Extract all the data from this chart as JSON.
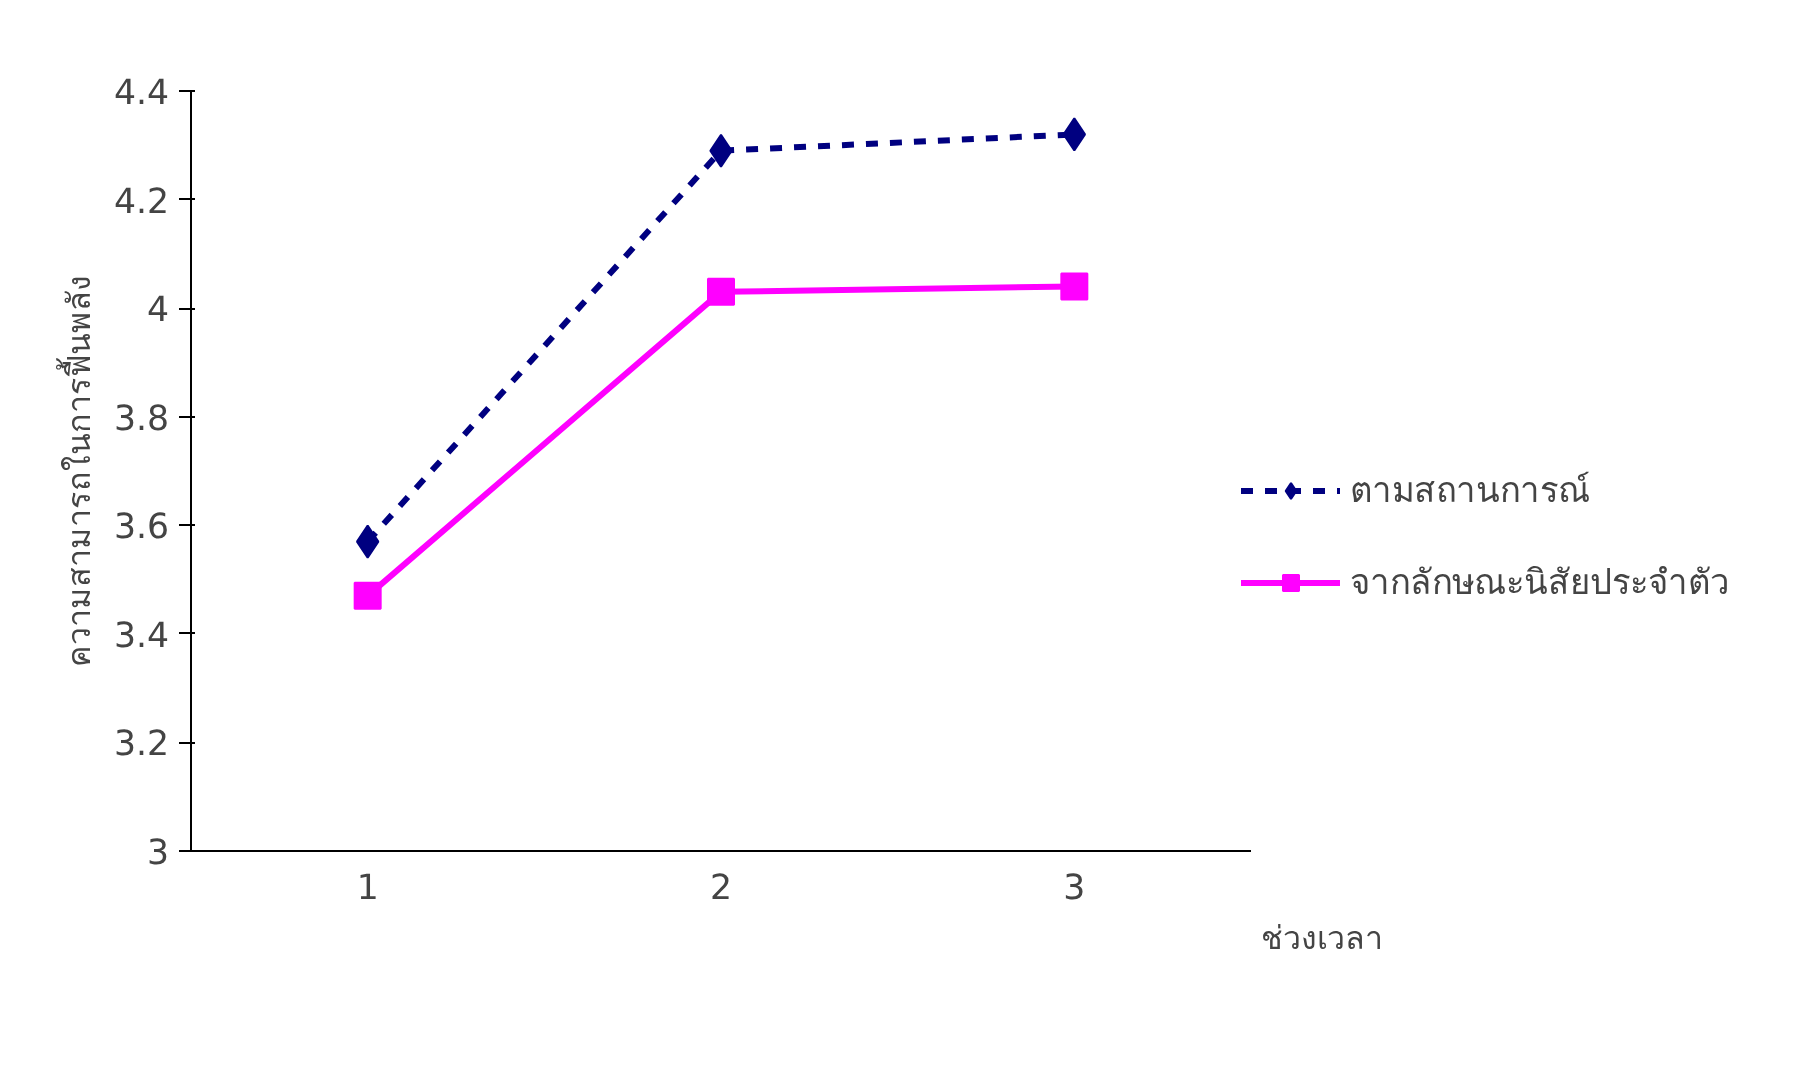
{
  "chart_data": {
    "type": "line",
    "xlabel": "ช่วงเวลา",
    "ylabel": "ความสามารถในการฟื้นพลัง",
    "categories": [
      "1",
      "2",
      "3"
    ],
    "series": [
      {
        "name": "ตามสถานการณ์",
        "color": "#000080",
        "values": [
          3.57,
          4.29,
          4.32
        ],
        "marker": "diamond",
        "line_style": "dashed"
      },
      {
        "name": "จากลักษณะนิสัยประจำตัว",
        "color": "#ff00ff",
        "values": [
          3.47,
          4.03,
          4.04
        ],
        "marker": "square",
        "line_style": "solid"
      }
    ],
    "ylim": [
      3,
      4.4
    ],
    "yticks": [
      3,
      3.2,
      3.4,
      3.6,
      3.8,
      4,
      4.2,
      4.4
    ],
    "grid": false,
    "legend": "right"
  }
}
